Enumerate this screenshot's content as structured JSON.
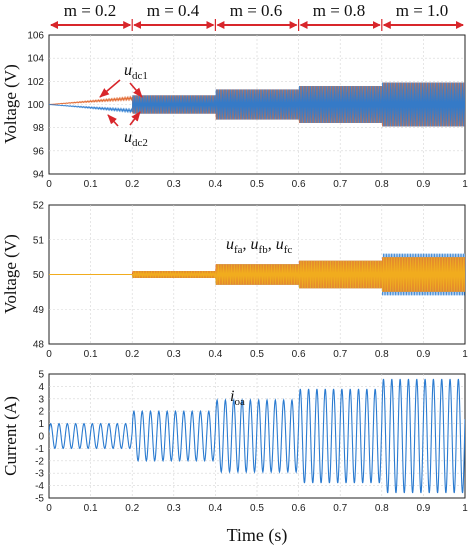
{
  "chart_data": {
    "type": "line",
    "x_tick_labels": [
      "0",
      "0.1",
      "0.2",
      "0.3",
      "0.4",
      "0.5",
      "0.6",
      "0.7",
      "0.8",
      "0.9",
      "1"
    ],
    "xlabel": "Time (s)",
    "xlim": [
      0,
      1
    ],
    "grid": true,
    "modulation_segments": [
      {
        "label": "m = 0.2",
        "from": 0.0,
        "to": 0.2
      },
      {
        "label": "m = 0.4",
        "from": 0.2,
        "to": 0.4
      },
      {
        "label": "m = 0.6",
        "from": 0.4,
        "to": 0.6
      },
      {
        "label": "m = 0.8",
        "from": 0.6,
        "to": 0.8
      },
      {
        "label": "m = 1.0",
        "from": 0.8,
        "to": 1.0
      }
    ],
    "panels": [
      {
        "ylabel": "Voltage (V)",
        "ylim": [
          94,
          106
        ],
        "y_tick_labels": [
          "94",
          "96",
          "98",
          "100",
          "102",
          "104",
          "106"
        ],
        "annotations": [
          "u_dc1",
          "u_dc2"
        ],
        "series": [
          {
            "label": "u_dc1",
            "color": "#e0642a",
            "mean": 100,
            "envelope": [
              [
                0,
                0.0
              ],
              [
                0.2,
                0.6
              ],
              [
                0.2,
                0.8
              ],
              [
                0.4,
                0.8
              ],
              [
                0.4,
                1.3
              ],
              [
                0.6,
                1.3
              ],
              [
                0.6,
                1.6
              ],
              [
                0.8,
                1.6
              ],
              [
                0.8,
                1.9
              ],
              [
                1.0,
                1.9
              ]
            ]
          },
          {
            "label": "u_dc2",
            "color": "#2b7bd0",
            "mean": 100,
            "envelope": [
              [
                0,
                0.0
              ],
              [
                0.2,
                0.6
              ],
              [
                0.2,
                0.8
              ],
              [
                0.4,
                0.8
              ],
              [
                0.4,
                1.3
              ],
              [
                0.6,
                1.3
              ],
              [
                0.6,
                1.6
              ],
              [
                0.8,
                1.6
              ],
              [
                0.8,
                1.9
              ],
              [
                1.0,
                1.9
              ]
            ]
          }
        ]
      },
      {
        "ylabel": "Voltage (V)",
        "ylim": [
          48,
          52
        ],
        "y_tick_labels": [
          "48",
          "49",
          "50",
          "51",
          "52"
        ],
        "annotations": [
          "u_fa, u_fb, u_fc"
        ],
        "series": [
          {
            "label": "u_fa",
            "color": "#2b7bd0",
            "mean": 50,
            "envelope": [
              [
                0,
                0.0
              ],
              [
                0.2,
                0.0
              ],
              [
                0.2,
                0.1
              ],
              [
                0.4,
                0.1
              ],
              [
                0.4,
                0.3
              ],
              [
                0.6,
                0.3
              ],
              [
                0.6,
                0.4
              ],
              [
                0.8,
                0.4
              ],
              [
                0.8,
                0.6
              ],
              [
                1.0,
                0.6
              ]
            ]
          },
          {
            "label": "u_fb",
            "color": "#e0642a",
            "mean": 50,
            "envelope": [
              [
                0,
                0.0
              ],
              [
                0.2,
                0.0
              ],
              [
                0.2,
                0.1
              ],
              [
                0.4,
                0.1
              ],
              [
                0.4,
                0.3
              ],
              [
                0.6,
                0.3
              ],
              [
                0.6,
                0.4
              ],
              [
                0.8,
                0.4
              ],
              [
                0.8,
                0.5
              ],
              [
                1.0,
                0.5
              ]
            ]
          },
          {
            "label": "u_fc",
            "color": "#f2b01e",
            "mean": 50,
            "envelope": [
              [
                0,
                0.0
              ],
              [
                0.2,
                0.0
              ],
              [
                0.2,
                0.1
              ],
              [
                0.4,
                0.1
              ],
              [
                0.4,
                0.3
              ],
              [
                0.6,
                0.3
              ],
              [
                0.6,
                0.4
              ],
              [
                0.8,
                0.4
              ],
              [
                0.8,
                0.5
              ],
              [
                1.0,
                0.5
              ]
            ]
          }
        ]
      },
      {
        "ylabel": "Current (A)",
        "ylim": [
          -5,
          5
        ],
        "y_tick_labels": [
          "-5",
          "-4",
          "-3",
          "-2",
          "-1",
          "0",
          "1",
          "2",
          "3",
          "4",
          "5"
        ],
        "annotations": [
          "i_oa"
        ],
        "series": [
          {
            "label": "i_oa",
            "color": "#2b7bd0",
            "mean": 0,
            "frequency_hz": 50,
            "amplitude": [
              [
                0,
                1.0
              ],
              [
                0.2,
                1.0
              ],
              [
                0.2,
                2.0
              ],
              [
                0.4,
                2.0
              ],
              [
                0.4,
                2.9
              ],
              [
                0.6,
                2.9
              ],
              [
                0.6,
                3.8
              ],
              [
                0.8,
                3.8
              ],
              [
                0.8,
                4.6
              ],
              [
                1.0,
                4.6
              ]
            ]
          }
        ]
      }
    ]
  },
  "labels": {
    "m": [
      "m = 0.2",
      "m = 0.4",
      "m = 0.6",
      "m = 0.8",
      "m = 1.0"
    ],
    "udc1_base": "u",
    "udc1_sub": "dc1",
    "udc2_base": "u",
    "udc2_sub": "dc2",
    "uf_a_base": "u",
    "uf_a_sub": "fa",
    "uf_b_base": "u",
    "uf_b_sub": "fb",
    "uf_c_base": "u",
    "uf_c_sub": "fc",
    "uf_sep": ", ",
    "ioa_base": "i",
    "ioa_sub": "oa",
    "ylabel1": "Voltage (V)",
    "ylabel2": "Voltage (V)",
    "ylabel3": "Current (A)",
    "xlabel": "Time (s)"
  },
  "colors": {
    "orange": "#e0642a",
    "blue": "#2b7bd0",
    "yellow": "#f2b01e",
    "arrow": "#d8262b"
  }
}
